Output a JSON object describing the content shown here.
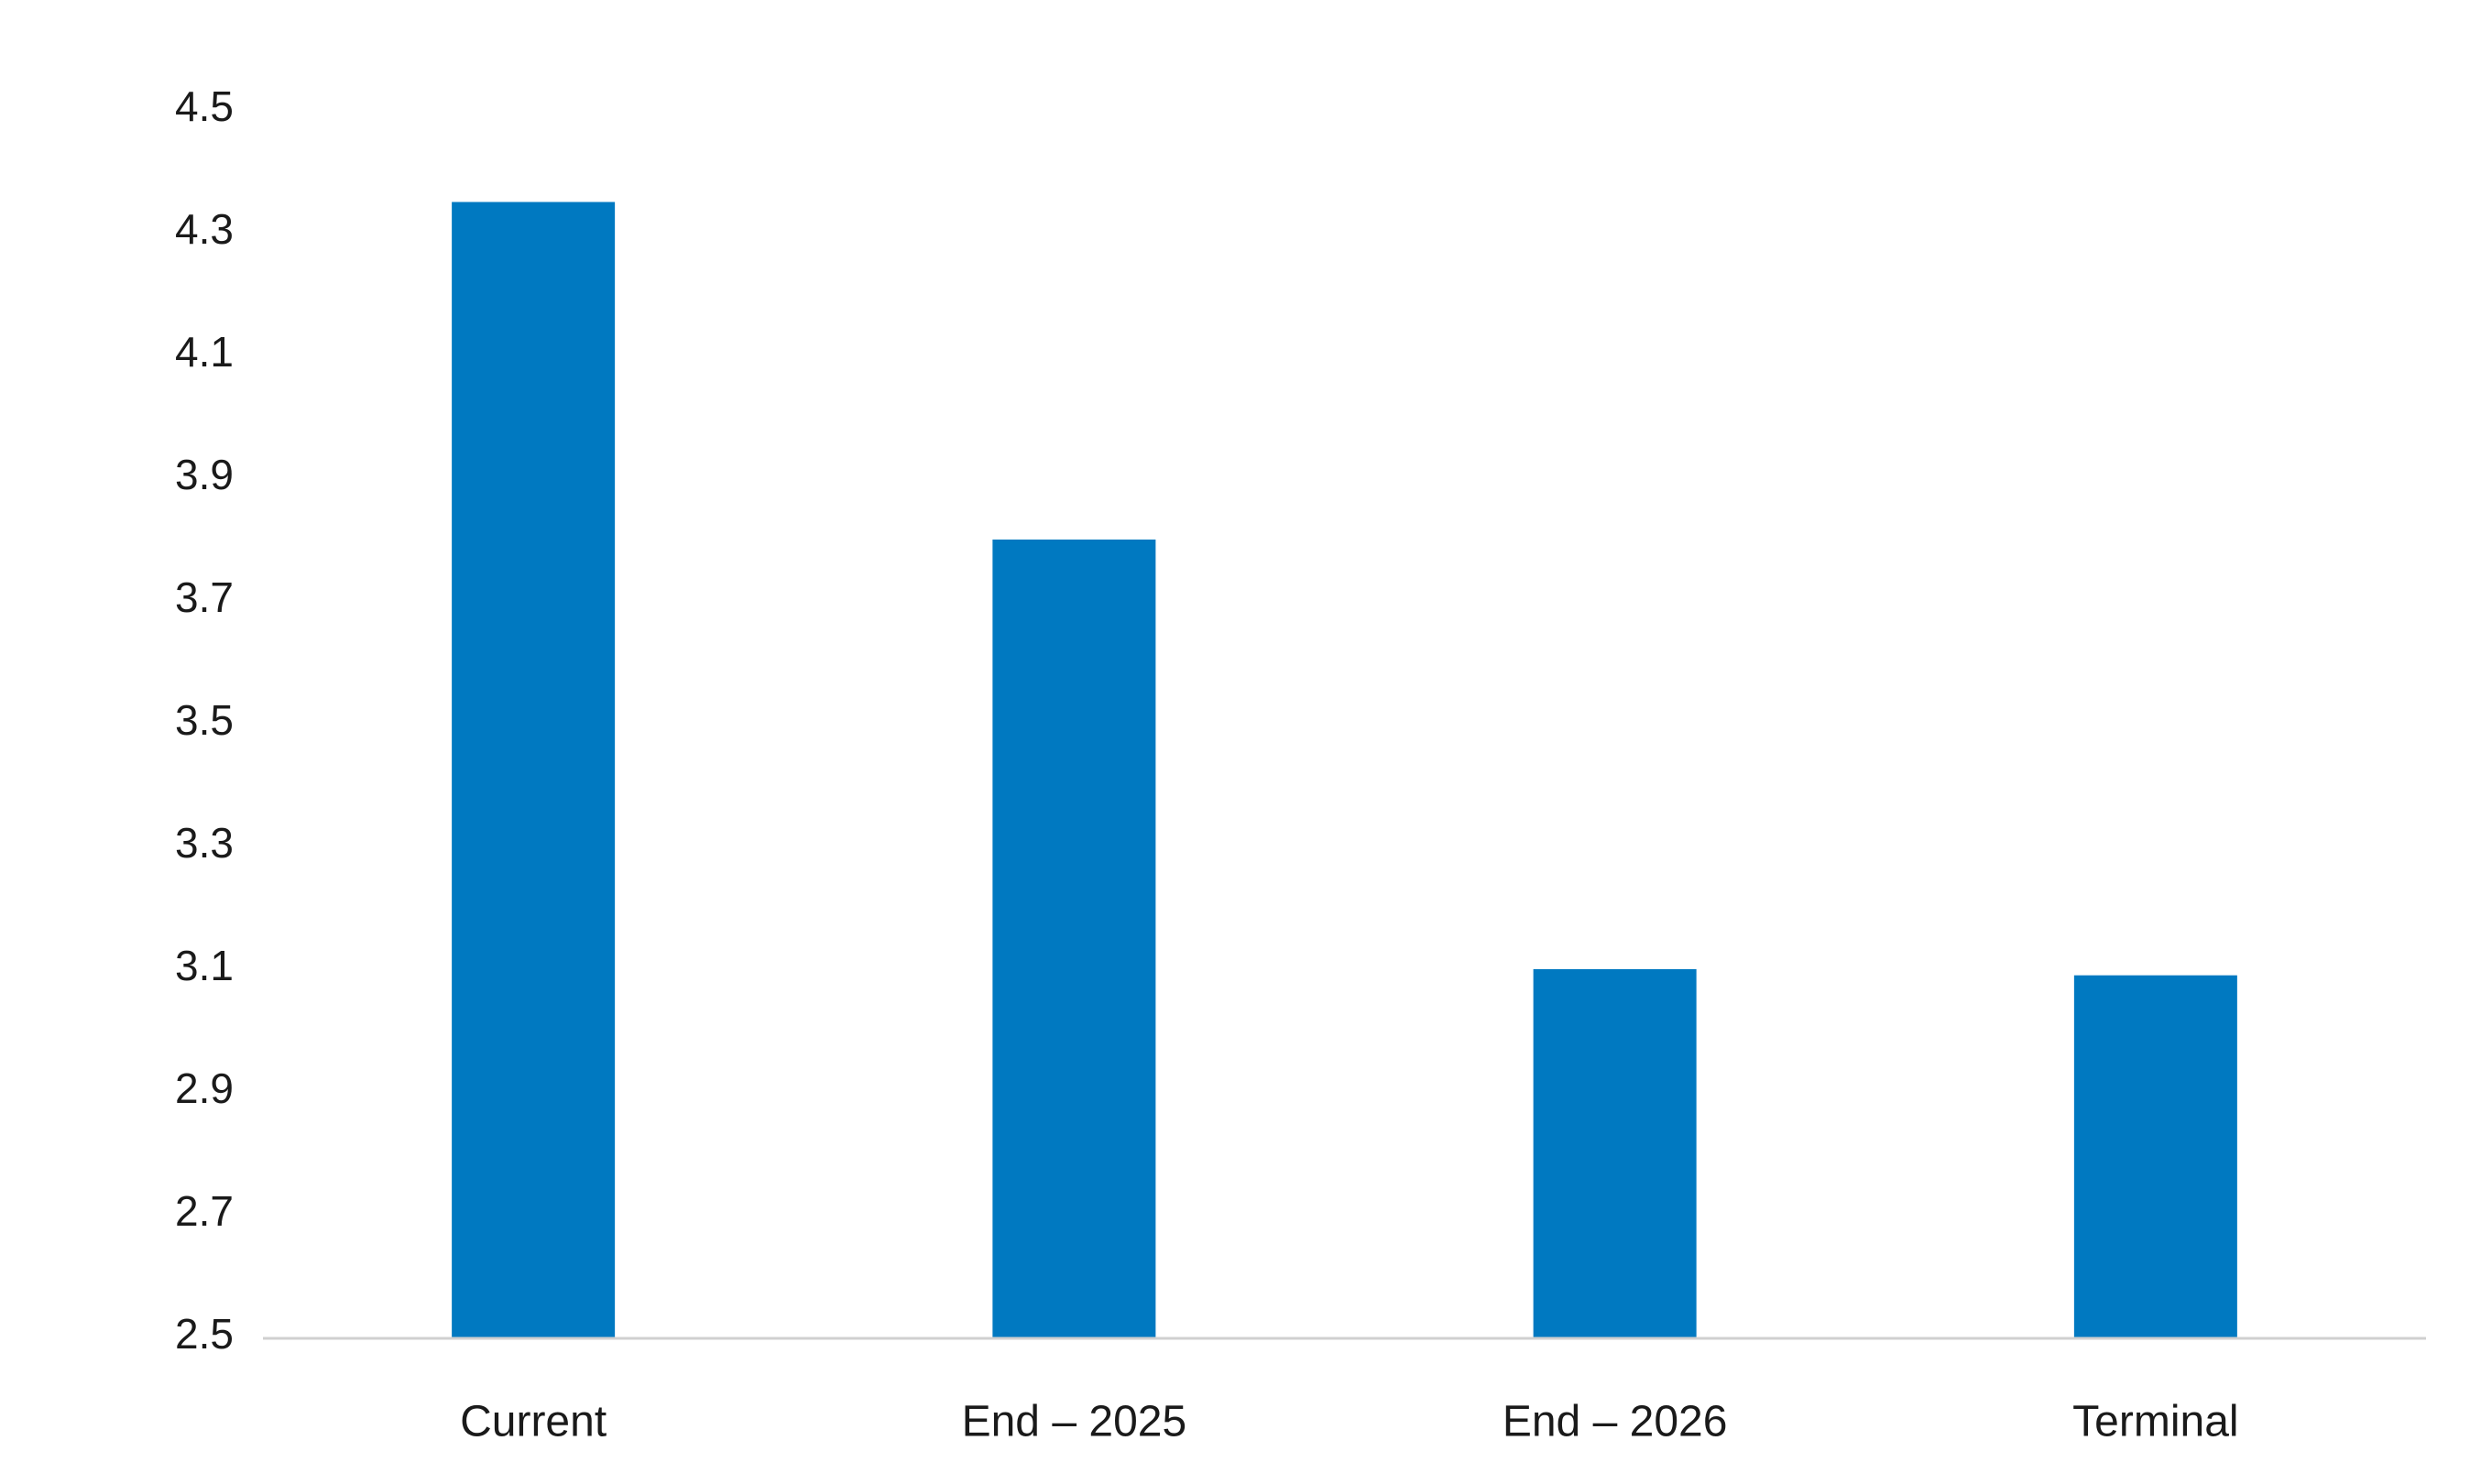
{
  "chart_data": {
    "type": "bar",
    "title": "",
    "xlabel": "",
    "ylabel": "",
    "categories": [
      "Current",
      "End – 2025",
      "End – 2026",
      "Terminal"
    ],
    "values": [
      4.35,
      3.8,
      3.1,
      3.09
    ],
    "ylim": [
      2.5,
      4.5
    ],
    "yticks": [
      "2.5",
      "2.7",
      "2.9",
      "3.1",
      "3.3",
      "3.5",
      "3.7",
      "3.9",
      "4.1",
      "4.3",
      "4.5"
    ],
    "grid": false,
    "legend": "none",
    "colors": {
      "bar": "#0079C1",
      "axis": "#D0D0D0",
      "text": "#1A1A1A"
    }
  }
}
